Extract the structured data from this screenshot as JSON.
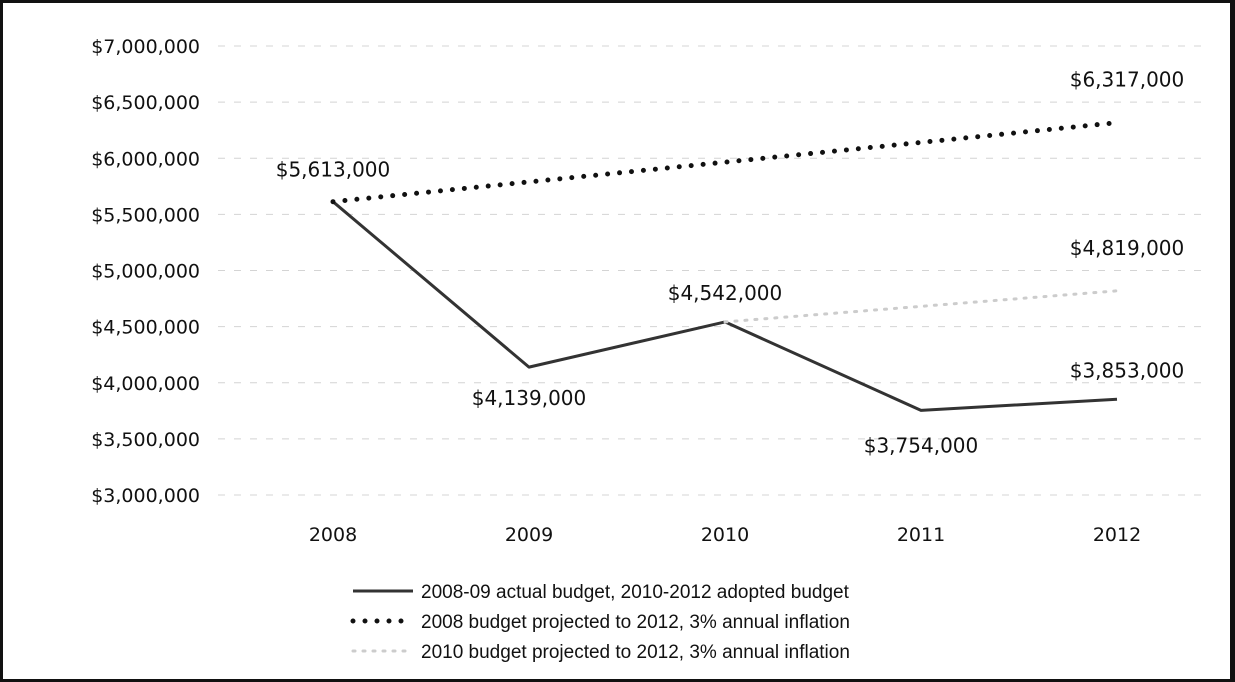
{
  "chart_data": {
    "type": "line",
    "categories": [
      "2008",
      "2009",
      "2010",
      "2011",
      "2012"
    ],
    "ylim": [
      3000000,
      7000000
    ],
    "y_ticks": [
      3000000,
      3500000,
      4000000,
      4500000,
      5000000,
      5500000,
      6000000,
      6500000,
      7000000
    ],
    "y_tick_labels": [
      "$3,000,000",
      "$3,500,000",
      "$4,000,000",
      "$4,500,000",
      "$5,000,000",
      "$5,500,000",
      "$6,000,000",
      "$6,500,000",
      "$7,000,000"
    ],
    "grid": true,
    "legend_position": "bottom",
    "series": [
      {
        "name": "2008-09 actual budget, 2010-2012 adopted budget",
        "style": "solid",
        "color": "#333333",
        "x": [
          "2008",
          "2009",
          "2010",
          "2011",
          "2012"
        ],
        "values": [
          5613000,
          4139000,
          4542000,
          3754000,
          3853000
        ],
        "labels": [
          "$5,613,000",
          "$4,139,000",
          "$4,542,000",
          "$3,754,000",
          "$3,853,000"
        ]
      },
      {
        "name": "2008 budget projected to 2012, 3% annual inflation",
        "style": "dotted",
        "color": "#111111",
        "x": [
          "2008",
          "2012"
        ],
        "values": [
          5613000,
          6317000
        ],
        "labels": [
          "",
          "$6,317,000"
        ]
      },
      {
        "name": "2010 budget projected to 2012, 3% annual inflation",
        "style": "dashed",
        "color": "#cccccc",
        "x": [
          "2010",
          "2012"
        ],
        "values": [
          4542000,
          4819000
        ],
        "labels": [
          "",
          "$4,819,000"
        ]
      }
    ]
  }
}
